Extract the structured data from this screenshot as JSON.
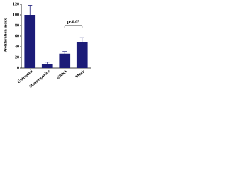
{
  "chart_data": {
    "type": "bar",
    "ylabel": "Proliferation index",
    "categories": [
      "Untreated",
      "Staurosporine",
      "siRNA",
      "Mock"
    ],
    "values": [
      100,
      8,
      27,
      49
    ],
    "errors": [
      18,
      3,
      4,
      8
    ],
    "color": "#1c1c78",
    "ylim": [
      0,
      120
    ],
    "yticks": [
      0,
      20,
      40,
      60,
      80,
      100,
      120
    ],
    "annotation": "p<0.05"
  }
}
